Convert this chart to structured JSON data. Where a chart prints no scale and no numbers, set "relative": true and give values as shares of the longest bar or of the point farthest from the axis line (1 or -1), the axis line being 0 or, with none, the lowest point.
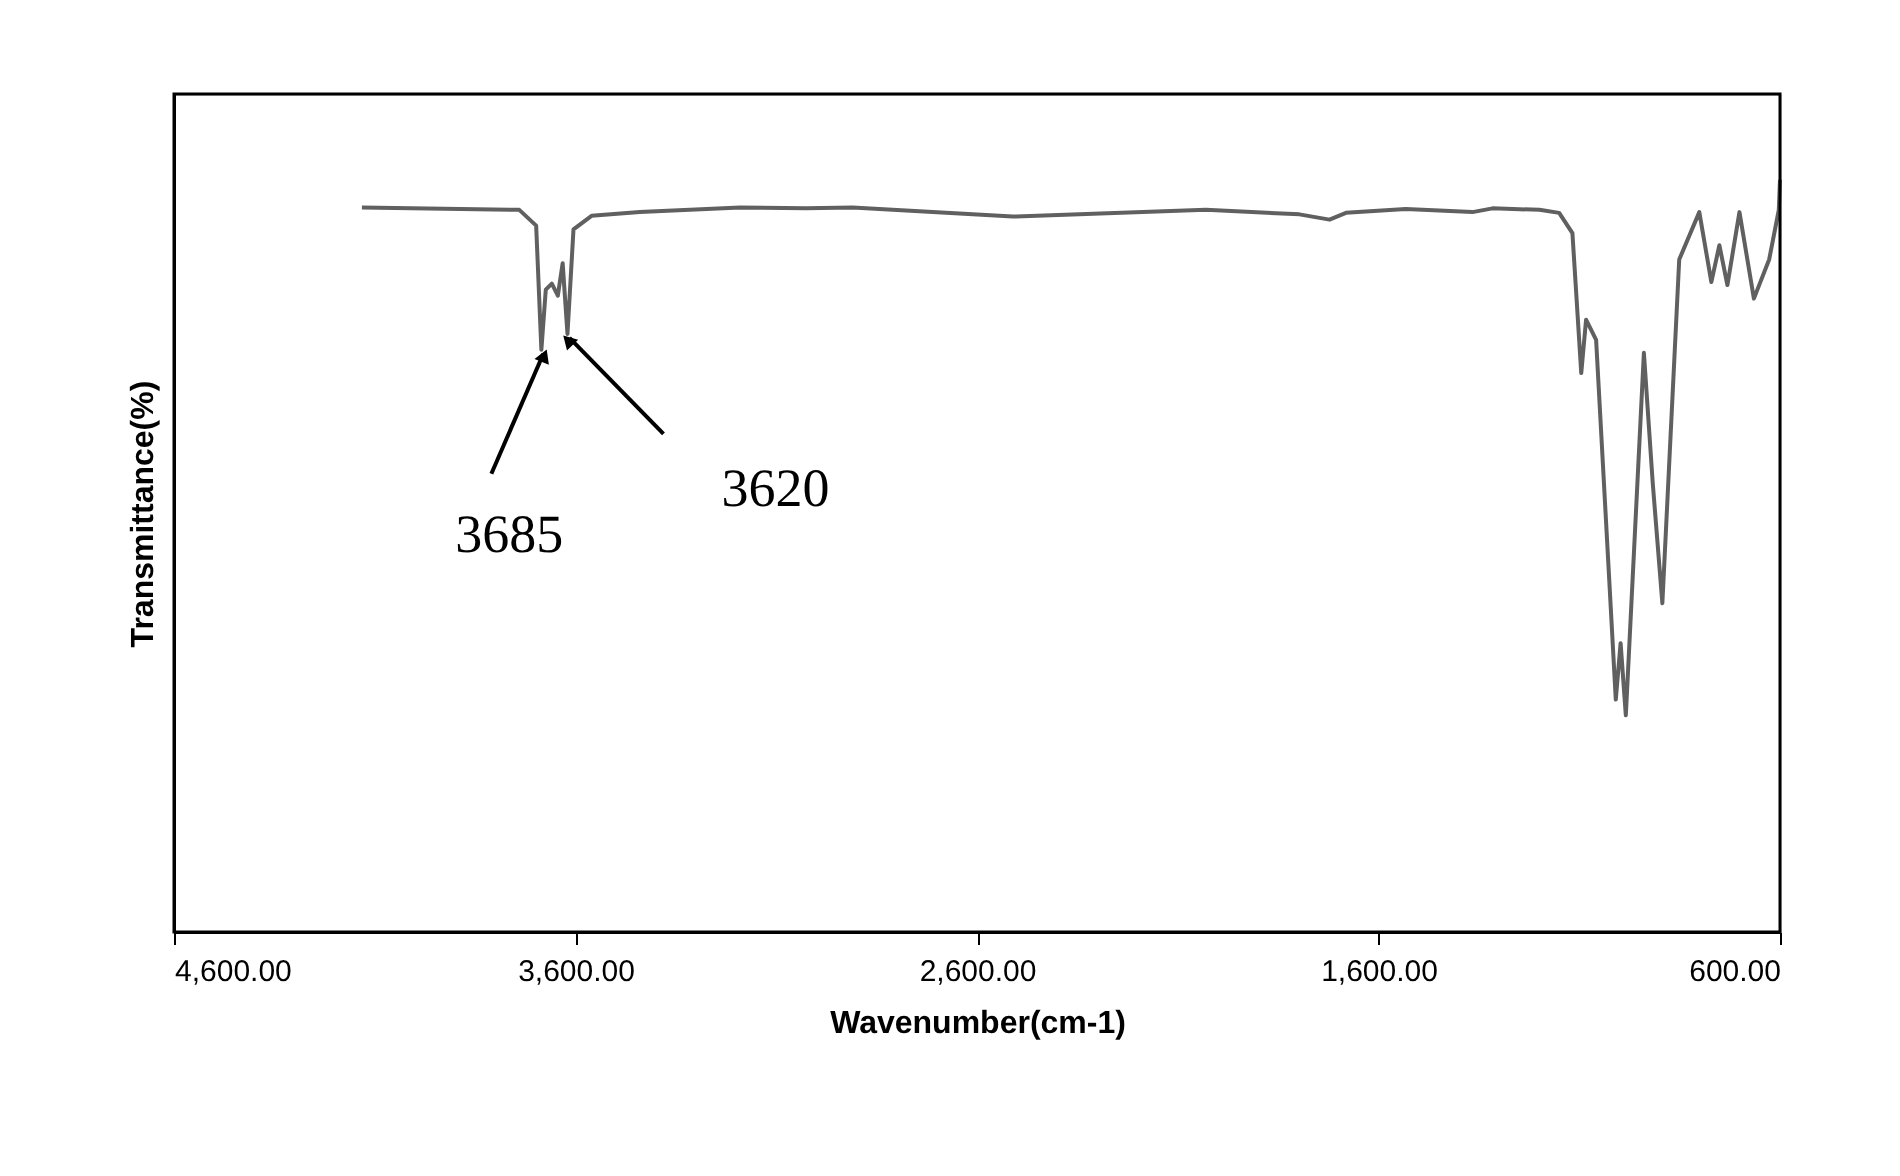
{
  "chart_data": {
    "type": "line",
    "relative": true,
    "xlabel": "Wavenumber(cm-1)",
    "ylabel": "Transmittance(%)",
    "color": "#606060",
    "xlim": [
      4600,
      600
    ],
    "xticks": [
      {
        "value": 4600,
        "label": "4,600.00"
      },
      {
        "value": 3600,
        "label": "3,600.00"
      },
      {
        "value": 2600,
        "label": "2,600.00"
      },
      {
        "value": 1600,
        "label": "1,600.00"
      },
      {
        "value": 600,
        "label": "600.00"
      }
    ],
    "grid": false,
    "marker": "none",
    "line_style": "solid",
    "x": [
      4132,
      3740,
      3698,
      3685,
      3674,
      3659,
      3644,
      3632,
      3620,
      3605,
      3560,
      3440,
      3190,
      3026,
      2910,
      2511,
      2030,
      1797,
      1722,
      1681,
      1532,
      1366,
      1316,
      1199,
      1150,
      1117,
      1095,
      1083,
      1058,
      1009,
      997,
      984,
      939,
      917,
      893,
      851,
      801,
      771,
      751,
      731,
      701,
      665,
      627,
      603,
      600
    ],
    "values": [
      0.963,
      0.96,
      0.939,
      0.774,
      0.854,
      0.862,
      0.846,
      0.889,
      0.795,
      0.934,
      0.952,
      0.957,
      0.963,
      0.962,
      0.963,
      0.951,
      0.96,
      0.954,
      0.947,
      0.956,
      0.961,
      0.957,
      0.962,
      0.96,
      0.956,
      0.929,
      0.743,
      0.814,
      0.787,
      0.309,
      0.384,
      0.288,
      0.77,
      0.597,
      0.437,
      0.894,
      0.957,
      0.864,
      0.913,
      0.86,
      0.957,
      0.842,
      0.894,
      0.96,
      1.0
    ],
    "annotations": [
      {
        "text": "3685",
        "x": 3685,
        "y": 0.774
      },
      {
        "text": "3620",
        "x": 3620,
        "y": 0.795
      }
    ]
  }
}
